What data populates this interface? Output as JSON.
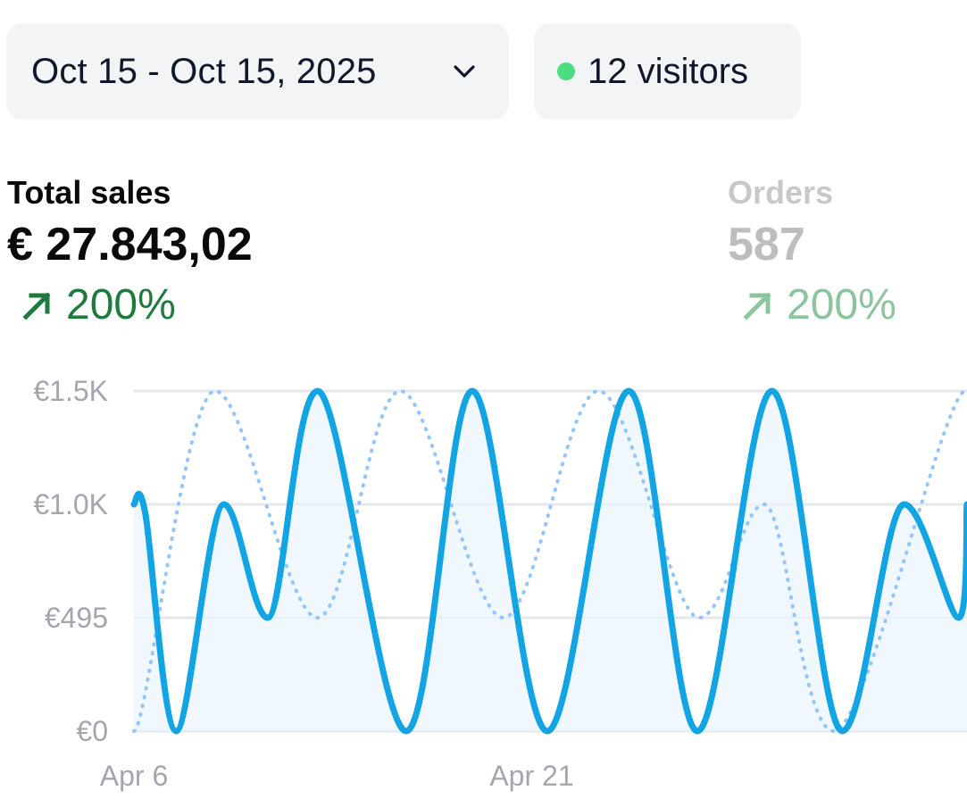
{
  "date_range": {
    "label": "Oct 15 - Oct 15, 2025",
    "icon": "chevron-down-icon"
  },
  "visitors": {
    "label": "12 visitors",
    "dot_color": "#4ade80"
  },
  "metrics": {
    "total_sales": {
      "label": "Total sales",
      "value": "€ 27.843,02",
      "change": "200%",
      "icon": "arrow-up-right-icon"
    },
    "orders": {
      "label": "Orders",
      "value": "587",
      "change": "200%",
      "icon": "arrow-up-right-icon"
    }
  },
  "colors": {
    "primary_line": "#12a4e3",
    "comparison_line": "#93c5fd",
    "area_fill": "#eaf5fd",
    "gridline": "#e5e7eb",
    "positive": "#1f7a3e"
  },
  "chart_data": {
    "type": "line",
    "y_ticks": [
      "€0",
      "€495",
      "€1.0K",
      "€1.5K"
    ],
    "x_ticks": [
      "Apr 6",
      "Apr 21"
    ],
    "ylim": [
      0,
      1500
    ],
    "grid": true,
    "series": [
      {
        "style": "solid",
        "fill": true,
        "x": [
          0,
          0.43,
          1.6,
          3.4,
          5.06,
          6.95,
          10.3,
          12.8,
          15.64,
          18.72,
          21.32,
          24.14,
          26.8,
          29.14,
          31.2,
          31.52
        ],
        "y": [
          1000,
          960,
          0,
          1000,
          500,
          1500,
          0,
          1500,
          0,
          1500,
          0,
          1500,
          0,
          1000,
          500,
          1000
        ]
      },
      {
        "style": "dotted",
        "fill": false,
        "x": [
          0,
          3.07,
          6.94,
          10.08,
          13.98,
          17.58,
          21.37,
          23.84,
          26.48,
          31.46
        ],
        "y": [
          0,
          1500,
          500,
          1500,
          500,
          1500,
          500,
          1000,
          0,
          1500
        ]
      }
    ]
  }
}
